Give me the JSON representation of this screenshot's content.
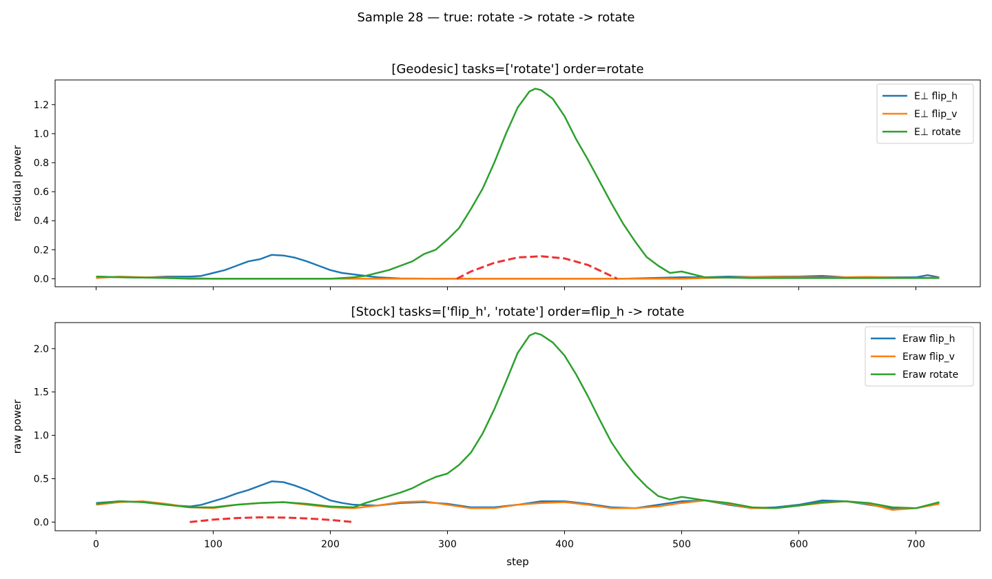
{
  "suptitle": "Sample 28 — true: rotate -> rotate -> rotate",
  "shared_xlabel": "step",
  "chart_data": [
    {
      "type": "line",
      "title": "[Geodesic] tasks=['rotate'] order=rotate",
      "xlabel": "",
      "ylabel": "residual power",
      "xlim": [
        -35,
        755
      ],
      "ylim": [
        -0.055,
        1.37
      ],
      "xticks": [
        0,
        100,
        200,
        300,
        400,
        500,
        600,
        700
      ],
      "yticks": [
        0.0,
        0.2,
        0.4,
        0.6,
        0.8,
        1.0,
        1.2
      ],
      "ytick_labels": [
        "0.0",
        "0.2",
        "0.4",
        "0.6",
        "0.8",
        "1.0",
        "1.2"
      ],
      "show_xtick_labels": false,
      "grid": false,
      "legend_position": "top-right",
      "series": [
        {
          "name": "E⊥ flip_h",
          "color": "#1f77b4",
          "x": [
            0,
            20,
            40,
            60,
            80,
            90,
            100,
            110,
            120,
            130,
            140,
            150,
            160,
            170,
            180,
            190,
            200,
            210,
            220,
            240,
            260,
            300,
            350,
            400,
            450,
            500,
            520,
            540,
            560,
            580,
            600,
            620,
            640,
            660,
            680,
            700,
            710,
            720
          ],
          "y": [
            0.015,
            0.01,
            0.008,
            0.015,
            0.015,
            0.02,
            0.04,
            0.06,
            0.09,
            0.12,
            0.135,
            0.165,
            0.16,
            0.145,
            0.12,
            0.09,
            0.06,
            0.04,
            0.03,
            0.01,
            0.002,
            0.0,
            0.0,
            0.0,
            0.0,
            0.01,
            0.01,
            0.015,
            0.012,
            0.015,
            0.015,
            0.02,
            0.01,
            0.012,
            0.01,
            0.01,
            0.025,
            0.01
          ]
        },
        {
          "name": "E⊥ flip_v",
          "color": "#ff7f0e",
          "x": [
            0,
            20,
            40,
            60,
            80,
            100,
            150,
            200,
            250,
            300,
            350,
            400,
            450,
            500,
            520,
            540,
            560,
            580,
            600,
            620,
            640,
            660,
            680,
            700,
            720
          ],
          "y": [
            0.005,
            0.015,
            0.01,
            0.008,
            0.005,
            0.0,
            0.0,
            0.0,
            0.0,
            0.0,
            0.0,
            0.0,
            0.0,
            0.0,
            0.005,
            0.008,
            0.01,
            0.012,
            0.01,
            0.008,
            0.01,
            0.012,
            0.008,
            0.006,
            0.008
          ]
        },
        {
          "name": "E⊥ rotate",
          "color": "#2ca02c",
          "x": [
            0,
            20,
            40,
            60,
            80,
            100,
            150,
            200,
            220,
            230,
            240,
            250,
            260,
            270,
            280,
            290,
            300,
            310,
            320,
            330,
            340,
            350,
            360,
            370,
            375,
            380,
            390,
            400,
            410,
            420,
            430,
            440,
            450,
            460,
            470,
            480,
            490,
            500,
            510,
            520,
            560,
            600,
            640,
            680,
            720
          ],
          "y": [
            0.015,
            0.01,
            0.008,
            0.005,
            0.0,
            0.0,
            0.0,
            0.0,
            0.01,
            0.02,
            0.04,
            0.06,
            0.09,
            0.12,
            0.17,
            0.2,
            0.27,
            0.35,
            0.48,
            0.62,
            0.8,
            1.0,
            1.18,
            1.29,
            1.31,
            1.3,
            1.24,
            1.12,
            0.96,
            0.82,
            0.67,
            0.52,
            0.38,
            0.26,
            0.15,
            0.09,
            0.04,
            0.05,
            0.03,
            0.01,
            0.005,
            0.005,
            0.005,
            0.005,
            0.005
          ]
        },
        {
          "name": "",
          "color": "#ef3131",
          "dashed": true,
          "x": [
            308,
            320,
            340,
            360,
            380,
            400,
            420,
            445
          ],
          "y": [
            0.0,
            0.05,
            0.11,
            0.147,
            0.155,
            0.14,
            0.095,
            0.0
          ]
        }
      ]
    },
    {
      "type": "line",
      "title": "[Stock] tasks=['flip_h', 'rotate'] order=flip_h -> rotate",
      "xlabel": "step",
      "ylabel": "raw power",
      "xlim": [
        -35,
        755
      ],
      "ylim": [
        -0.1,
        2.3
      ],
      "xticks": [
        0,
        100,
        200,
        300,
        400,
        500,
        600,
        700
      ],
      "xtick_labels": [
        "0",
        "100",
        "200",
        "300",
        "400",
        "500",
        "600",
        "700"
      ],
      "yticks": [
        0.0,
        0.5,
        1.0,
        1.5,
        2.0
      ],
      "ytick_labels": [
        "0.0",
        "0.5",
        "1.0",
        "1.5",
        "2.0"
      ],
      "show_xtick_labels": true,
      "grid": false,
      "legend_position": "top-right",
      "series": [
        {
          "name": "Eraw flip_h",
          "color": "#1f77b4",
          "x": [
            0,
            20,
            40,
            60,
            80,
            90,
            100,
            110,
            120,
            130,
            140,
            150,
            160,
            170,
            180,
            190,
            200,
            210,
            220,
            240,
            260,
            280,
            300,
            320,
            340,
            360,
            380,
            400,
            420,
            440,
            460,
            480,
            500,
            520,
            540,
            560,
            580,
            600,
            620,
            640,
            660,
            680,
            700,
            720
          ],
          "y": [
            0.22,
            0.24,
            0.23,
            0.2,
            0.18,
            0.2,
            0.24,
            0.28,
            0.33,
            0.37,
            0.42,
            0.47,
            0.46,
            0.42,
            0.37,
            0.31,
            0.25,
            0.22,
            0.2,
            0.19,
            0.22,
            0.23,
            0.21,
            0.17,
            0.17,
            0.2,
            0.24,
            0.24,
            0.21,
            0.17,
            0.16,
            0.2,
            0.24,
            0.25,
            0.2,
            0.16,
            0.17,
            0.2,
            0.25,
            0.24,
            0.2,
            0.16,
            0.16,
            0.22
          ]
        },
        {
          "name": "Eraw flip_v",
          "color": "#ff7f0e",
          "x": [
            0,
            20,
            40,
            60,
            80,
            100,
            120,
            140,
            160,
            180,
            200,
            220,
            240,
            260,
            280,
            300,
            320,
            340,
            360,
            380,
            400,
            420,
            440,
            460,
            480,
            500,
            520,
            540,
            560,
            580,
            600,
            620,
            640,
            660,
            680,
            700,
            720
          ],
          "y": [
            0.2,
            0.23,
            0.24,
            0.21,
            0.17,
            0.16,
            0.2,
            0.22,
            0.23,
            0.2,
            0.17,
            0.16,
            0.19,
            0.23,
            0.24,
            0.2,
            0.16,
            0.16,
            0.2,
            0.22,
            0.23,
            0.2,
            0.16,
            0.16,
            0.18,
            0.22,
            0.25,
            0.21,
            0.16,
            0.16,
            0.19,
            0.22,
            0.24,
            0.21,
            0.14,
            0.16,
            0.21
          ]
        },
        {
          "name": "Eraw rotate",
          "color": "#2ca02c",
          "x": [
            0,
            20,
            40,
            60,
            80,
            100,
            120,
            140,
            160,
            180,
            200,
            220,
            230,
            240,
            250,
            260,
            270,
            280,
            290,
            300,
            310,
            320,
            330,
            340,
            350,
            360,
            370,
            375,
            380,
            390,
            400,
            410,
            420,
            430,
            440,
            450,
            460,
            470,
            480,
            490,
            500,
            510,
            520,
            540,
            560,
            580,
            600,
            620,
            640,
            660,
            680,
            700,
            720
          ],
          "y": [
            0.21,
            0.24,
            0.23,
            0.2,
            0.17,
            0.17,
            0.2,
            0.22,
            0.23,
            0.21,
            0.18,
            0.17,
            0.22,
            0.26,
            0.3,
            0.34,
            0.39,
            0.46,
            0.52,
            0.56,
            0.66,
            0.8,
            1.02,
            1.3,
            1.62,
            1.95,
            2.15,
            2.18,
            2.16,
            2.07,
            1.92,
            1.7,
            1.45,
            1.18,
            0.92,
            0.72,
            0.55,
            0.41,
            0.3,
            0.26,
            0.29,
            0.27,
            0.25,
            0.22,
            0.17,
            0.16,
            0.19,
            0.23,
            0.24,
            0.22,
            0.17,
            0.16,
            0.23
          ]
        },
        {
          "name": "",
          "color": "#ef3131",
          "dashed": true,
          "x": [
            80,
            100,
            120,
            140,
            160,
            180,
            200,
            220
          ],
          "y": [
            0.0,
            0.028,
            0.046,
            0.054,
            0.052,
            0.042,
            0.025,
            0.0
          ]
        }
      ]
    }
  ]
}
